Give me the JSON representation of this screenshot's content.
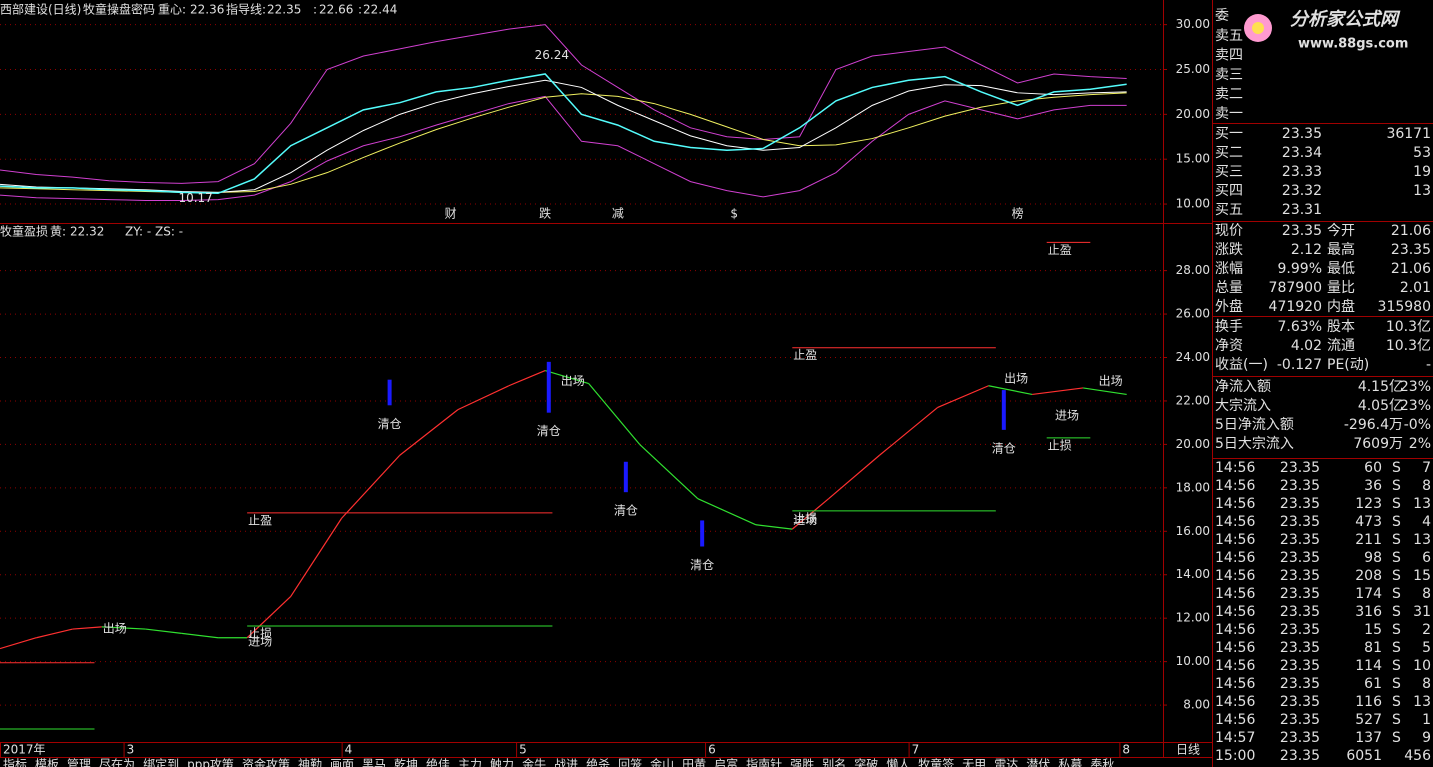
{
  "header": {
    "stock": "西部建设(日线)",
    "indicator": "牧童操盘密码",
    "center_label": "重心:",
    "center_value": 22.36,
    "guide_label": "指导线:",
    "guide_value": 22.35,
    "sep1": ":",
    "value3": 22.66,
    "sep2": ":",
    "value4": 22.44
  },
  "date_axis": {
    "xlim": [
      0,
      160
    ],
    "xticks": [
      {
        "value": 0,
        "label": "2017年"
      },
      17,
      47,
      71,
      97,
      125,
      154
    ],
    "xtick_labels": [
      "2017年",
      "3",
      "4",
      "5",
      "6",
      "7",
      "8"
    ],
    "period": "日线"
  },
  "price_chart": {
    "type": "line",
    "ylim": [
      8,
      32.3
    ],
    "yticks": [
      {
        "value": 30,
        "label": "30.00"
      },
      {
        "value": 25,
        "label": "25.00"
      },
      {
        "value": 20,
        "label": "20.00"
      },
      {
        "value": 15,
        "label": "15.00"
      },
      {
        "value": 10,
        "label": "10.00"
      }
    ],
    "grid": true,
    "x": [
      0,
      5,
      10,
      15,
      20,
      25,
      30,
      35,
      40,
      45,
      50,
      55,
      60,
      65,
      70,
      75,
      80,
      85,
      90,
      95,
      100,
      105,
      110,
      115,
      120,
      125,
      130,
      135,
      140,
      145,
      150,
      155
    ],
    "series": [
      {
        "name": "upper",
        "color": "#d040d0",
        "values": [
          13.8,
          13.3,
          13.0,
          12.6,
          12.4,
          12.3,
          12.5,
          14.5,
          19.0,
          25.0,
          26.5,
          27.3,
          28.1,
          28.8,
          29.5,
          30.0,
          25.5,
          23.0,
          20.5,
          18.5,
          17.5,
          17.2,
          17.5,
          25.0,
          26.5,
          27.0,
          27.5,
          25.5,
          23.5,
          24.5,
          24.2,
          24.0
        ]
      },
      {
        "name": "lower",
        "color": "#d040d0",
        "values": [
          11.0,
          10.7,
          10.6,
          10.5,
          10.4,
          10.4,
          10.5,
          11.0,
          12.5,
          14.8,
          16.5,
          17.5,
          18.8,
          20.0,
          21.2,
          22.0,
          17.0,
          16.5,
          14.5,
          12.5,
          11.5,
          10.8,
          11.5,
          13.5,
          17.0,
          20.0,
          21.5,
          20.5,
          19.5,
          20.5,
          21.0,
          21.0
        ]
      },
      {
        "name": "long-ma",
        "color": "#f0f060",
        "values": [
          11.8,
          11.7,
          11.6,
          11.5,
          11.4,
          11.3,
          11.3,
          11.4,
          12.2,
          13.5,
          15.2,
          16.8,
          18.3,
          19.6,
          20.8,
          21.9,
          22.3,
          22.0,
          21.2,
          20.0,
          18.6,
          17.2,
          16.5,
          16.6,
          17.3,
          18.5,
          19.8,
          20.8,
          21.5,
          21.9,
          22.2,
          22.4
        ]
      },
      {
        "name": "short-ma",
        "color": "#ffffff",
        "values": [
          12.2,
          11.9,
          11.8,
          11.7,
          11.6,
          11.4,
          11.3,
          11.6,
          13.5,
          16.0,
          18.2,
          20.0,
          21.3,
          22.3,
          23.1,
          23.8,
          23.0,
          21.0,
          19.3,
          17.6,
          16.5,
          16.0,
          16.3,
          18.5,
          21.0,
          22.6,
          23.3,
          23.2,
          22.4,
          22.2,
          22.4,
          22.5
        ]
      },
      {
        "name": "close",
        "color": "#54fcfc",
        "values": [
          12.0,
          11.8,
          11.8,
          11.6,
          11.5,
          11.3,
          11.2,
          12.8,
          16.5,
          18.5,
          20.5,
          21.3,
          22.5,
          23.0,
          23.8,
          24.5,
          20.0,
          18.8,
          17.0,
          16.3,
          16.0,
          16.2,
          18.5,
          21.5,
          23.0,
          23.8,
          24.2,
          22.5,
          21.0,
          22.5,
          22.8,
          23.35
        ]
      }
    ],
    "extremes": [
      {
        "x": 73,
        "value": 26.24
      },
      {
        "x": 24,
        "value": 10.17
      }
    ],
    "tags": [
      {
        "text": "财",
        "x": 62,
        "color": "#5aa0ff"
      },
      {
        "text": "跌",
        "x": 75,
        "color": "#54ff54"
      },
      {
        "text": "减",
        "x": 85,
        "color": "#54ff54"
      },
      {
        "text": "$",
        "x": 101,
        "color": "#ff5454"
      },
      {
        "text": "榜",
        "x": 140,
        "color": "#ffa850"
      }
    ]
  },
  "indicator_chart": {
    "type": "line",
    "title": "牧童盈损",
    "yellow_label": "黄:",
    "yellow_value": 22.32,
    "zy": "ZY: -",
    "zs": "ZS: -",
    "ylim": [
      6.3,
      30.1
    ],
    "yticks": [
      {
        "value": 28,
        "label": "28.00"
      },
      {
        "value": 26,
        "label": "26.00"
      },
      {
        "value": 24,
        "label": "24.00"
      },
      {
        "value": 22,
        "label": "22.00"
      },
      {
        "value": 20,
        "label": "20.00"
      },
      {
        "value": 18,
        "label": "18.00"
      },
      {
        "value": 16,
        "label": "16.00"
      },
      {
        "value": 14,
        "label": "14.00"
      },
      {
        "value": 12,
        "label": "12.00"
      },
      {
        "value": 10,
        "label": "10.00"
      },
      {
        "value": 8,
        "label": "8.00"
      }
    ],
    "grid": true,
    "rise_color": "#ff3030",
    "fall_color": "#30e030",
    "x": [
      0,
      5,
      10,
      14,
      20,
      25,
      30,
      34,
      40,
      47,
      55,
      63,
      70,
      75,
      81,
      88,
      96,
      104,
      109,
      114,
      121,
      129,
      136,
      142,
      149,
      155
    ],
    "values": [
      10.6,
      11.1,
      11.5,
      11.6,
      11.5,
      11.3,
      11.1,
      11.1,
      13.0,
      16.6,
      19.5,
      21.6,
      22.7,
      23.4,
      22.8,
      20.0,
      17.5,
      16.3,
      16.1,
      17.5,
      19.5,
      21.7,
      22.7,
      22.3,
      22.6,
      22.3
    ],
    "levels": [
      {
        "x": [
          0,
          13
        ],
        "value": 9.95,
        "color": "#ff3030"
      },
      {
        "x": [
          0,
          13
        ],
        "value": 6.9,
        "color": "#30e030"
      },
      {
        "x": [
          34,
          76
        ],
        "value": 16.85,
        "color": "#ff3030",
        "label": "止盈"
      },
      {
        "x": [
          34,
          76
        ],
        "value": 11.64,
        "color": "#30e030",
        "label": "止损"
      },
      {
        "x": [
          109,
          137
        ],
        "value": 24.45,
        "color": "#ff3030",
        "label": "止盈"
      },
      {
        "x": [
          109,
          137
        ],
        "value": 16.94,
        "color": "#30e030",
        "label": "止损"
      },
      {
        "x": [
          144,
          150
        ],
        "value": 29.3,
        "color": "#ff3030",
        "label": "止盈"
      },
      {
        "x": [
          144,
          150
        ],
        "value": 20.3,
        "color": "#30e030",
        "label": "止损"
      }
    ],
    "signals": [
      {
        "text": "出场",
        "x": 14,
        "value": 11.5,
        "color": "#30e030"
      },
      {
        "text": "进场",
        "x": 34,
        "value": 10.9,
        "color": "#ff3030"
      },
      {
        "text": "出场",
        "x": 77,
        "value": 22.9,
        "color": "#30e030"
      },
      {
        "text": "进场",
        "x": 109,
        "value": 16.5,
        "color": "#ff3030"
      },
      {
        "text": "出场",
        "x": 138,
        "value": 23.0,
        "color": "#30e030"
      },
      {
        "text": "进场",
        "x": 145,
        "value": 21.3,
        "color": "#ff3030"
      },
      {
        "text": "出场",
        "x": 151,
        "value": 22.9,
        "color": "#30e030"
      }
    ],
    "clear_label": "清仓",
    "clear_color": "#1a1aff",
    "clear_label_color": "#54fcfc",
    "clears": [
      {
        "x": 53.6,
        "top": 22.98,
        "bottom": 21.8
      },
      {
        "x": 75.5,
        "top": 23.8,
        "bottom": 21.46
      },
      {
        "x": 86.1,
        "top": 19.2,
        "bottom": 17.8
      },
      {
        "x": 96.6,
        "top": 16.5,
        "bottom": 15.3
      },
      {
        "x": 138.1,
        "top": 22.5,
        "bottom": 20.67
      }
    ]
  },
  "watermark": {
    "title": "分析家公式网",
    "url": "www.88gs.com"
  },
  "order_book": {
    "committee": "委",
    "asks": [
      "卖五",
      "卖四",
      "卖三",
      "卖二",
      "卖一"
    ],
    "bids": [
      {
        "label": "买一",
        "price": 23.35,
        "volume": 36171
      },
      {
        "label": "买二",
        "price": 23.34,
        "volume": 53
      },
      {
        "label": "买三",
        "price": 23.33,
        "volume": 19
      },
      {
        "label": "买四",
        "price": 23.32,
        "volume": 13
      },
      {
        "label": "买五",
        "price": 23.31
      }
    ]
  },
  "quotes": [
    {
      "label": "现价",
      "value": 23.35,
      "color": "#ff5454",
      "label2": "今开",
      "value2": 21.06,
      "color2": "#54ff54"
    },
    {
      "label": "涨跌",
      "value": 2.12,
      "color": "#ff5454",
      "label2": "最高",
      "value2": 23.35,
      "color2": "#ff5454"
    },
    {
      "label": "涨幅",
      "value": "9.99%",
      "color": "#ff5454",
      "label2": "最低",
      "value2": 21.06,
      "color2": "#54ff54"
    },
    {
      "label": "总量",
      "value": 787900,
      "color": "#ffff54",
      "label2": "量比",
      "value2": 2.01,
      "color2": "#ff5454"
    },
    {
      "label": "外盘",
      "value": 471920,
      "color": "#ff5454",
      "label2": "内盘",
      "value2": 315980,
      "color2": "#54ff54"
    },
    {
      "label": "换手",
      "value": "7.63%",
      "color": "#e0e0e0",
      "label2": "股本",
      "value2": "10.3亿",
      "color2": "#e0e0e0"
    },
    {
      "label": "净资",
      "value": 4.02,
      "color": "#e0e0e0",
      "label2": "流通",
      "value2": "10.3亿",
      "color2": "#e0e0e0"
    },
    {
      "label": "收益(一)",
      "value": -0.127,
      "color": "#e0e0e0",
      "label2": "PE(动)",
      "value2": "-",
      "color2": "#e0e0e0"
    }
  ],
  "flows": [
    {
      "label": "净流入额",
      "value": "4.15亿",
      "pct": "23%",
      "color": "#ff5454"
    },
    {
      "label": "大宗流入",
      "value": "4.05亿",
      "pct": "23%",
      "color": "#ff5454"
    },
    {
      "label": "5日净流入额",
      "value": "-296.4万",
      "pct": "-0%",
      "color": "#54ff54"
    },
    {
      "label": "5日大宗流入",
      "value": "7609万",
      "pct": "2%",
      "color": "#ff5454"
    }
  ],
  "trades": [
    {
      "time": "14:56",
      "price": 23.35,
      "volume": 60,
      "vcolor": "#ffff54",
      "side": "S",
      "count": 7
    },
    {
      "time": "14:56",
      "price": 23.35,
      "volume": 36,
      "vcolor": "#ffff54",
      "side": "S",
      "count": 8
    },
    {
      "time": "14:56",
      "price": 23.35,
      "volume": 123,
      "vcolor": "#ffff54",
      "side": "S",
      "count": 13
    },
    {
      "time": "14:56",
      "price": 23.35,
      "volume": 473,
      "vcolor": "#ffff54",
      "side": "S",
      "count": 4
    },
    {
      "time": "14:56",
      "price": 23.35,
      "volume": 211,
      "vcolor": "#ffff54",
      "side": "S",
      "count": 13
    },
    {
      "time": "14:56",
      "price": 23.35,
      "volume": 98,
      "vcolor": "#ffff54",
      "side": "S",
      "count": 6
    },
    {
      "time": "14:56",
      "price": 23.35,
      "volume": 208,
      "vcolor": "#ffff54",
      "side": "S",
      "count": 15
    },
    {
      "time": "14:56",
      "price": 23.35,
      "volume": 174,
      "vcolor": "#ffff54",
      "side": "S",
      "count": 8
    },
    {
      "time": "14:56",
      "price": 23.35,
      "volume": 316,
      "vcolor": "#ffff54",
      "side": "S",
      "count": 31
    },
    {
      "time": "14:56",
      "price": 23.35,
      "volume": 15,
      "vcolor": "#e0e0e0",
      "side": "S",
      "count": 2
    },
    {
      "time": "14:56",
      "price": 23.35,
      "volume": 81,
      "vcolor": "#ffff54",
      "side": "S",
      "count": 5
    },
    {
      "time": "14:56",
      "price": 23.35,
      "volume": 114,
      "vcolor": "#ffff54",
      "side": "S",
      "count": 10
    },
    {
      "time": "14:56",
      "price": 23.35,
      "volume": 61,
      "vcolor": "#ffff54",
      "side": "S",
      "count": 8
    },
    {
      "time": "14:56",
      "price": 23.35,
      "volume": 116,
      "vcolor": "#ffff54",
      "side": "S",
      "count": 13
    },
    {
      "time": "14:56",
      "price": 23.35,
      "volume": 527,
      "vcolor": "#ff54ff",
      "side": "S",
      "count": 1
    },
    {
      "time": "14:57",
      "price": 23.35,
      "volume": 137,
      "vcolor": "#ffff54",
      "side": "S",
      "count": 9
    },
    {
      "time": "15:00",
      "price": 23.35,
      "volume": 6051,
      "vcolor": "#ff54ff",
      "count": 456
    }
  ],
  "tabs": [
    "指标",
    "模板",
    "管理",
    "尽在为",
    "绑定到",
    "ppp攻策",
    "资金攻策",
    "神勤",
    "画面",
    "黑马",
    "乾坤",
    "绝佳",
    "主力",
    "触力",
    "金牛",
    "战进",
    "绝杀",
    "回笼",
    "金山",
    "田黄",
    "启富",
    "指南针",
    "强胜",
    "别名",
    "突破",
    "懒人",
    "牧童签",
    "无甲",
    "雷达",
    "潜伏",
    "私募",
    "奉秋"
  ],
  "active_tab": 2
}
